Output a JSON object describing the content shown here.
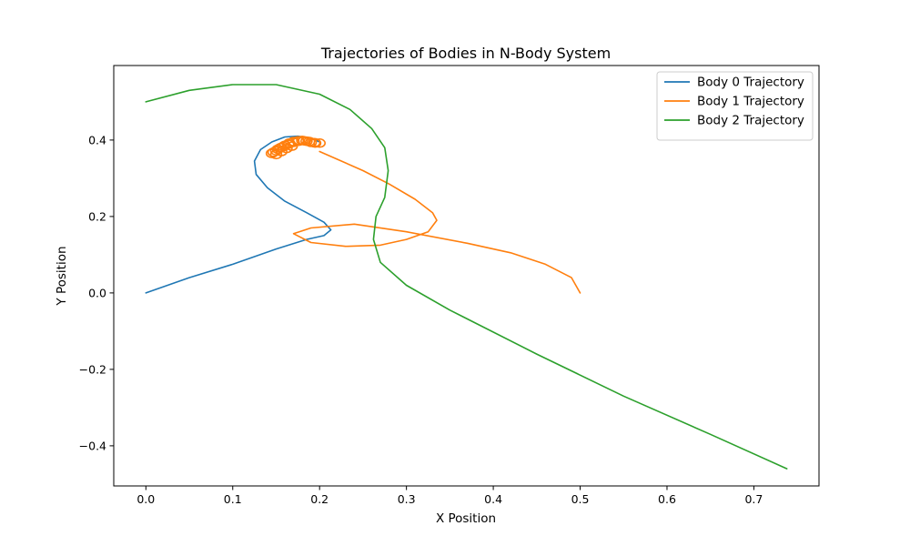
{
  "chart_data": {
    "type": "line",
    "title": "Trajectories of Bodies in N-Body System",
    "xlabel": "X Position",
    "ylabel": "Y Position",
    "xlim": [
      -0.037,
      0.775
    ],
    "ylim": [
      -0.505,
      0.595
    ],
    "x_ticks": [
      0.0,
      0.1,
      0.2,
      0.3,
      0.4,
      0.5,
      0.6,
      0.7
    ],
    "x_tick_labels": [
      "0.0",
      "0.1",
      "0.2",
      "0.3",
      "0.4",
      "0.5",
      "0.6",
      "0.7"
    ],
    "y_ticks": [
      -0.4,
      -0.2,
      0.0,
      0.2,
      0.4
    ],
    "y_tick_labels": [
      "−0.4",
      "−0.2",
      "0.0",
      "0.2",
      "0.4"
    ],
    "grid": false,
    "legend_position": "top-right",
    "series": [
      {
        "name": "Body 0 Trajectory",
        "color": "#1f77b4",
        "x": [
          0.0,
          0.05,
          0.1,
          0.15,
          0.185,
          0.205,
          0.213,
          0.205,
          0.185,
          0.16,
          0.14,
          0.127,
          0.125,
          0.132,
          0.145,
          0.16,
          0.175,
          0.19,
          0.2
        ],
        "y": [
          0.0,
          0.04,
          0.075,
          0.115,
          0.14,
          0.15,
          0.165,
          0.185,
          0.21,
          0.24,
          0.275,
          0.31,
          0.345,
          0.375,
          0.395,
          0.408,
          0.41,
          0.405,
          0.395
        ]
      },
      {
        "name": "Body 1 Trajectory",
        "color": "#ff7f0e",
        "x": [
          0.5,
          0.49,
          0.46,
          0.42,
          0.37,
          0.3,
          0.24,
          0.19,
          0.17,
          0.19,
          0.23,
          0.27,
          0.3,
          0.325,
          0.335,
          0.33,
          0.31,
          0.28,
          0.25,
          0.22,
          0.2
        ],
        "y": [
          0.0,
          0.04,
          0.075,
          0.105,
          0.13,
          0.16,
          0.18,
          0.17,
          0.155,
          0.132,
          0.122,
          0.125,
          0.14,
          0.16,
          0.19,
          0.21,
          0.245,
          0.285,
          0.32,
          0.35,
          0.37
        ]
      },
      {
        "name": "Body 2 Trajectory",
        "color": "#2ca02c",
        "x": [
          0.738,
          0.65,
          0.55,
          0.45,
          0.35,
          0.3,
          0.27,
          0.262,
          0.265,
          0.275,
          0.279,
          0.275,
          0.26,
          0.235,
          0.2,
          0.15,
          0.1,
          0.05,
          0.0
        ],
        "y": [
          -0.46,
          -0.37,
          -0.27,
          -0.16,
          -0.045,
          0.02,
          0.08,
          0.14,
          0.2,
          0.25,
          0.32,
          0.38,
          0.43,
          0.48,
          0.52,
          0.545,
          0.545,
          0.53,
          0.5
        ]
      }
    ],
    "cluster": {
      "series": "Body 1 Trajectory",
      "x": [
        0.145,
        0.15,
        0.155,
        0.16,
        0.165,
        0.17,
        0.175,
        0.18,
        0.185,
        0.19,
        0.195,
        0.2,
        0.147,
        0.152,
        0.158,
        0.164,
        0.17,
        0.176,
        0.182,
        0.188,
        0.194,
        0.15,
        0.156,
        0.162,
        0.168
      ],
      "y": [
        0.365,
        0.372,
        0.38,
        0.386,
        0.392,
        0.396,
        0.398,
        0.399,
        0.397,
        0.394,
        0.392,
        0.392,
        0.368,
        0.376,
        0.383,
        0.389,
        0.394,
        0.397,
        0.398,
        0.396,
        0.393,
        0.362,
        0.37,
        0.378,
        0.384
      ]
    }
  }
}
